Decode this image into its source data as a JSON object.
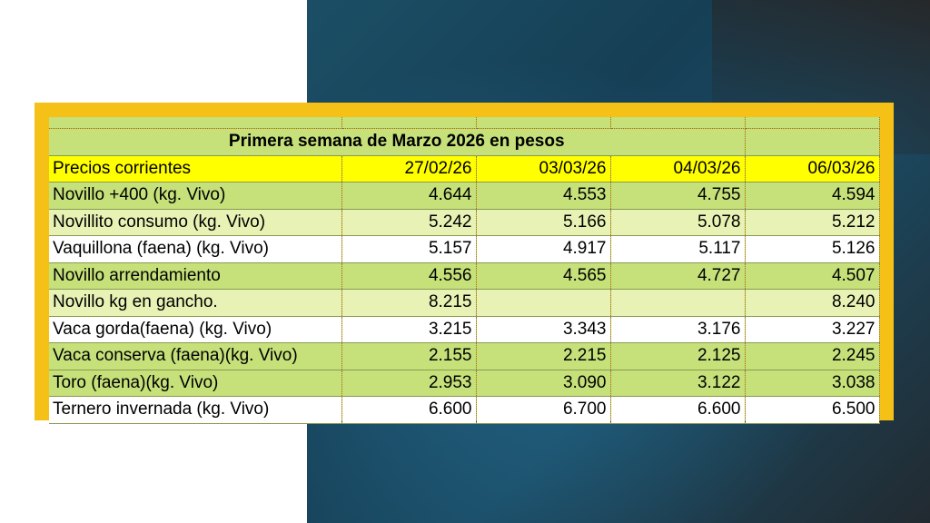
{
  "table": {
    "title": "Primera semana de Marzo 2026 en pesos",
    "header_label": "Precios corrientes",
    "dates": [
      "27/02/26",
      "03/03/26",
      "04/03/26",
      "06/03/26"
    ],
    "rows": [
      {
        "label": "Novillo +400 (kg. Vivo)",
        "values": [
          "4.644",
          "4.553",
          "4.755",
          "4.594"
        ]
      },
      {
        "label": "Novillito consumo (kg. Vivo)",
        "values": [
          "5.242",
          "5.166",
          "5.078",
          "5.212"
        ]
      },
      {
        "label": "Vaquillona (faena) (kg. Vivo)",
        "values": [
          "5.157",
          "4.917",
          "5.117",
          "5.126"
        ]
      },
      {
        "label": "Novillo arrendamiento",
        "values": [
          "4.556",
          "4.565",
          "4.727",
          "4.507"
        ]
      },
      {
        "label": "Novillo kg en gancho.",
        "values": [
          "8.215",
          "",
          "",
          "8.240"
        ]
      },
      {
        "label": "Vaca gorda(faena) (kg. Vivo)",
        "values": [
          "3.215",
          "3.343",
          "3.176",
          "3.227"
        ]
      },
      {
        "label": "Vaca conserva (faena)(kg. Vivo)",
        "values": [
          "2.155",
          "2.215",
          "2.125",
          "2.245"
        ]
      },
      {
        "label": "Toro (faena)(kg. Vivo)",
        "values": [
          "2.953",
          "3.090",
          "3.122",
          "3.038"
        ]
      },
      {
        "label": "Ternero invernada (kg. Vivo)",
        "values": [
          "6.600",
          "6.700",
          "6.600",
          "6.500"
        ]
      }
    ]
  },
  "colors": {
    "frame": "#f5c116",
    "header": "#ffff00",
    "green_row": "#c6e07a",
    "light_row": "#e7f2b4"
  }
}
